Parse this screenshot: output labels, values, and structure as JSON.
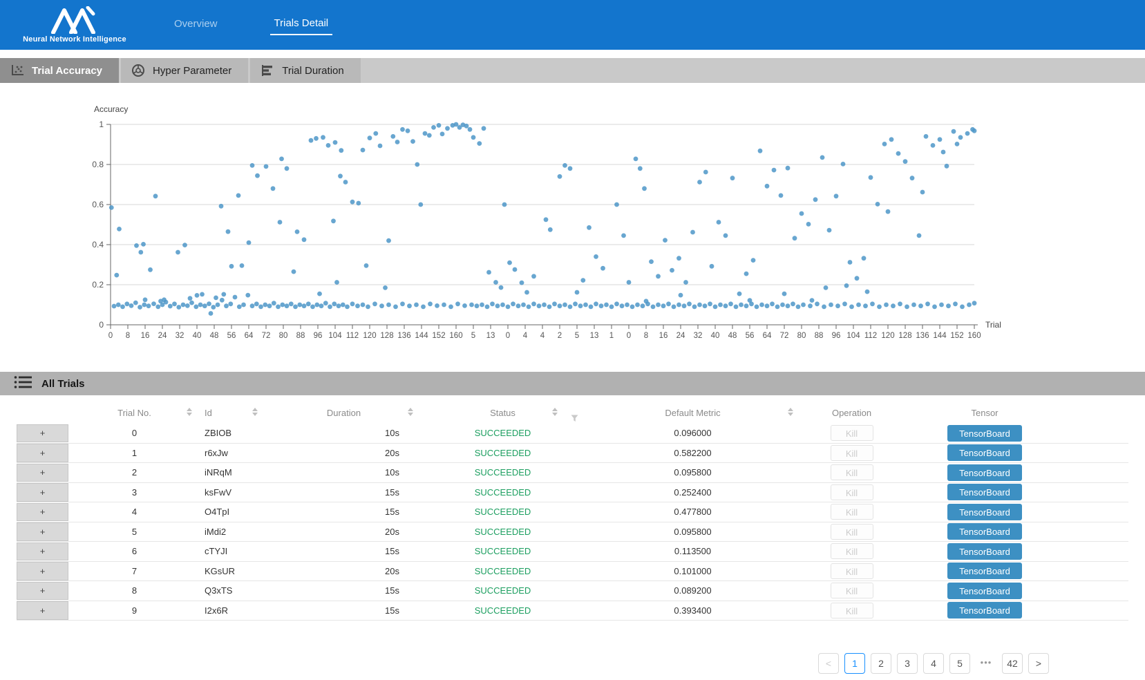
{
  "header": {
    "logo_text": "Neural Network Intelligence",
    "nav": [
      {
        "label": "Overview",
        "active": false
      },
      {
        "label": "Trials Detail",
        "active": true
      }
    ]
  },
  "subtabs": [
    {
      "label": "Trial Accuracy",
      "icon": "scatter-icon",
      "active": true
    },
    {
      "label": "Hyper Parameter",
      "icon": "wheel-icon",
      "active": false
    },
    {
      "label": "Trial Duration",
      "icon": "bars-icon",
      "active": false
    }
  ],
  "all_trials": {
    "title": "All Trials"
  },
  "colors": {
    "header_blue": "#1375cd",
    "point": "#4e96c8",
    "succeeded_green": "#1b9e5f",
    "tensorboard_blue": "#3d90c3",
    "pagination_active": "#1890ff"
  },
  "chart_data": {
    "type": "scatter",
    "title": "",
    "ylabel": "Accuracy",
    "xlabel": "Trial",
    "ylim": [
      0,
      1
    ],
    "grid": true,
    "y_ticks": [
      "0",
      "0.2",
      "0.4",
      "0.6",
      "0.8",
      "1"
    ],
    "x_tick_labels": [
      "0",
      "8",
      "16",
      "24",
      "32",
      "40",
      "48",
      "56",
      "64",
      "72",
      "80",
      "88",
      "96",
      "104",
      "112",
      "120",
      "128",
      "136",
      "144",
      "152",
      "160",
      "5",
      "13",
      "0",
      "4",
      "4",
      "2",
      "5",
      "13",
      "1",
      "0",
      "8",
      "16",
      "24",
      "32",
      "40",
      "48",
      "56",
      "64",
      "72",
      "80",
      "88",
      "96",
      "104",
      "112",
      "120",
      "128",
      "136",
      "144",
      "152",
      "160"
    ],
    "points": [
      [
        0.2,
        0.093
      ],
      [
        0.45,
        0.1
      ],
      [
        0.7,
        0.09
      ],
      [
        0.95,
        0.104
      ],
      [
        1.2,
        0.095
      ],
      [
        1.45,
        0.11
      ],
      [
        1.7,
        0.088
      ],
      [
        1.95,
        0.1
      ],
      [
        2.2,
        0.094
      ],
      [
        2.5,
        0.105
      ],
      [
        2.75,
        0.09
      ],
      [
        3.0,
        0.1
      ],
      [
        3.2,
        0.113
      ],
      [
        3.45,
        0.093
      ],
      [
        3.7,
        0.104
      ],
      [
        3.95,
        0.088
      ],
      [
        4.2,
        0.1
      ],
      [
        4.45,
        0.095
      ],
      [
        4.7,
        0.11
      ],
      [
        4.95,
        0.09
      ],
      [
        5.2,
        0.1
      ],
      [
        5.45,
        0.094
      ],
      [
        5.7,
        0.105
      ],
      [
        5.95,
        0.088
      ],
      [
        6.2,
        0.1
      ],
      [
        6.45,
        0.123
      ],
      [
        6.7,
        0.094
      ],
      [
        6.95,
        0.104
      ],
      [
        7.2,
        0.138
      ],
      [
        7.45,
        0.09
      ],
      [
        7.7,
        0.1
      ],
      [
        7.95,
        0.148
      ],
      [
        8.2,
        0.094
      ],
      [
        8.45,
        0.104
      ],
      [
        8.7,
        0.09
      ],
      [
        8.95,
        0.1
      ],
      [
        9.2,
        0.094
      ],
      [
        9.45,
        0.108
      ],
      [
        9.7,
        0.09
      ],
      [
        9.95,
        0.1
      ],
      [
        10.2,
        0.094
      ],
      [
        10.45,
        0.104
      ],
      [
        10.7,
        0.09
      ],
      [
        10.95,
        0.1
      ],
      [
        11.2,
        0.094
      ],
      [
        11.45,
        0.104
      ],
      [
        11.7,
        0.09
      ],
      [
        11.95,
        0.1
      ],
      [
        12.2,
        0.094
      ],
      [
        12.45,
        0.108
      ],
      [
        12.7,
        0.09
      ],
      [
        12.95,
        0.104
      ],
      [
        13.2,
        0.094
      ],
      [
        13.45,
        0.1
      ],
      [
        13.7,
        0.09
      ],
      [
        14.0,
        0.104
      ],
      [
        14.3,
        0.094
      ],
      [
        14.6,
        0.1
      ],
      [
        14.9,
        0.09
      ],
      [
        15.3,
        0.104
      ],
      [
        15.7,
        0.094
      ],
      [
        16.1,
        0.1
      ],
      [
        16.5,
        0.09
      ],
      [
        16.9,
        0.104
      ],
      [
        17.3,
        0.094
      ],
      [
        17.7,
        0.1
      ],
      [
        18.1,
        0.09
      ],
      [
        18.5,
        0.104
      ],
      [
        18.9,
        0.095
      ],
      [
        19.3,
        0.1
      ],
      [
        19.7,
        0.09
      ],
      [
        20.1,
        0.104
      ],
      [
        20.5,
        0.095
      ],
      [
        20.9,
        0.1
      ],
      [
        21.2,
        0.094
      ],
      [
        21.5,
        0.1
      ],
      [
        21.8,
        0.09
      ],
      [
        22.1,
        0.104
      ],
      [
        22.4,
        0.094
      ],
      [
        22.7,
        0.1
      ],
      [
        23.0,
        0.09
      ],
      [
        23.3,
        0.104
      ],
      [
        23.6,
        0.094
      ],
      [
        23.9,
        0.1
      ],
      [
        24.2,
        0.09
      ],
      [
        24.5,
        0.104
      ],
      [
        24.8,
        0.094
      ],
      [
        25.1,
        0.1
      ],
      [
        25.4,
        0.09
      ],
      [
        25.7,
        0.104
      ],
      [
        26.0,
        0.094
      ],
      [
        26.3,
        0.1
      ],
      [
        26.6,
        0.09
      ],
      [
        26.9,
        0.104
      ],
      [
        27.2,
        0.094
      ],
      [
        27.5,
        0.1
      ],
      [
        27.8,
        0.09
      ],
      [
        28.1,
        0.104
      ],
      [
        28.4,
        0.094
      ],
      [
        28.7,
        0.1
      ],
      [
        29.0,
        0.09
      ],
      [
        29.3,
        0.104
      ],
      [
        29.6,
        0.094
      ],
      [
        29.9,
        0.1
      ],
      [
        30.2,
        0.09
      ],
      [
        30.5,
        0.1
      ],
      [
        30.8,
        0.094
      ],
      [
        31.1,
        0.104
      ],
      [
        31.4,
        0.09
      ],
      [
        31.7,
        0.1
      ],
      [
        32.0,
        0.094
      ],
      [
        32.3,
        0.104
      ],
      [
        32.6,
        0.09
      ],
      [
        32.9,
        0.1
      ],
      [
        33.2,
        0.094
      ],
      [
        33.5,
        0.104
      ],
      [
        33.8,
        0.09
      ],
      [
        34.1,
        0.1
      ],
      [
        34.4,
        0.094
      ],
      [
        34.7,
        0.104
      ],
      [
        35.0,
        0.09
      ],
      [
        35.3,
        0.1
      ],
      [
        35.6,
        0.094
      ],
      [
        35.9,
        0.104
      ],
      [
        36.2,
        0.09
      ],
      [
        36.5,
        0.1
      ],
      [
        36.8,
        0.094
      ],
      [
        37.1,
        0.104
      ],
      [
        37.4,
        0.09
      ],
      [
        37.7,
        0.1
      ],
      [
        38.0,
        0.094
      ],
      [
        38.3,
        0.104
      ],
      [
        38.6,
        0.09
      ],
      [
        38.9,
        0.1
      ],
      [
        39.2,
        0.094
      ],
      [
        39.5,
        0.104
      ],
      [
        39.8,
        0.09
      ],
      [
        40.1,
        0.1
      ],
      [
        40.5,
        0.094
      ],
      [
        40.9,
        0.104
      ],
      [
        41.3,
        0.09
      ],
      [
        41.7,
        0.1
      ],
      [
        42.1,
        0.094
      ],
      [
        42.5,
        0.104
      ],
      [
        42.9,
        0.09
      ],
      [
        43.3,
        0.1
      ],
      [
        43.7,
        0.094
      ],
      [
        44.1,
        0.104
      ],
      [
        44.5,
        0.09
      ],
      [
        44.9,
        0.1
      ],
      [
        45.3,
        0.094
      ],
      [
        45.7,
        0.104
      ],
      [
        46.1,
        0.09
      ],
      [
        46.5,
        0.1
      ],
      [
        46.9,
        0.094
      ],
      [
        47.3,
        0.104
      ],
      [
        47.7,
        0.09
      ],
      [
        48.1,
        0.1
      ],
      [
        48.5,
        0.094
      ],
      [
        48.9,
        0.104
      ],
      [
        49.3,
        0.09
      ],
      [
        49.7,
        0.1
      ],
      [
        50.0,
        0.108
      ],
      [
        0.05,
        0.585
      ],
      [
        0.5,
        0.478
      ],
      [
        0.35,
        0.248
      ],
      [
        1.5,
        0.395
      ],
      [
        1.9,
        0.402
      ],
      [
        1.75,
        0.362
      ],
      [
        2.6,
        0.642
      ],
      [
        3.9,
        0.362
      ],
      [
        4.3,
        0.398
      ],
      [
        2.3,
        0.275
      ],
      [
        5.8,
        0.057
      ],
      [
        3.1,
        0.125
      ],
      [
        2.0,
        0.125
      ],
      [
        2.9,
        0.118
      ],
      [
        4.6,
        0.132
      ],
      [
        5.0,
        0.147
      ],
      [
        5.3,
        0.152
      ],
      [
        6.1,
        0.135
      ],
      [
        6.55,
        0.152
      ],
      [
        6.4,
        0.592
      ],
      [
        7.4,
        0.645
      ],
      [
        6.8,
        0.465
      ],
      [
        7.0,
        0.292
      ],
      [
        8.0,
        0.41
      ],
      [
        7.6,
        0.295
      ],
      [
        9.8,
        0.512
      ],
      [
        10.8,
        0.464
      ],
      [
        10.6,
        0.265
      ],
      [
        8.2,
        0.795
      ],
      [
        8.5,
        0.744
      ],
      [
        9.0,
        0.79
      ],
      [
        9.9,
        0.828
      ],
      [
        9.4,
        0.68
      ],
      [
        10.2,
        0.78
      ],
      [
        11.2,
        0.425
      ],
      [
        12.9,
        0.518
      ],
      [
        11.6,
        0.92
      ],
      [
        11.9,
        0.93
      ],
      [
        12.3,
        0.935
      ],
      [
        12.6,
        0.895
      ],
      [
        13.0,
        0.91
      ],
      [
        13.35,
        0.87
      ],
      [
        13.3,
        0.742
      ],
      [
        13.6,
        0.712
      ],
      [
        12.1,
        0.155
      ],
      [
        13.1,
        0.212
      ],
      [
        14.0,
        0.613
      ],
      [
        14.35,
        0.607
      ],
      [
        14.6,
        0.872
      ],
      [
        14.8,
        0.295
      ],
      [
        15.0,
        0.932
      ],
      [
        15.35,
        0.955
      ],
      [
        15.6,
        0.893
      ],
      [
        15.9,
        0.185
      ],
      [
        16.1,
        0.42
      ],
      [
        16.35,
        0.94
      ],
      [
        16.6,
        0.912
      ],
      [
        16.9,
        0.975
      ],
      [
        17.2,
        0.968
      ],
      [
        17.5,
        0.915
      ],
      [
        17.75,
        0.8
      ],
      [
        17.95,
        0.6
      ],
      [
        18.2,
        0.955
      ],
      [
        18.45,
        0.945
      ],
      [
        18.7,
        0.985
      ],
      [
        19.0,
        0.995
      ],
      [
        19.2,
        0.952
      ],
      [
        19.5,
        0.98
      ],
      [
        19.8,
        0.995
      ],
      [
        20.0,
        1.0
      ],
      [
        20.2,
        0.985
      ],
      [
        20.4,
        0.998
      ],
      [
        20.6,
        0.992
      ],
      [
        20.8,
        0.975
      ],
      [
        21.0,
        0.935
      ],
      [
        21.35,
        0.905
      ],
      [
        21.6,
        0.98
      ],
      [
        21.9,
        0.262
      ],
      [
        22.3,
        0.212
      ],
      [
        22.6,
        0.186
      ],
      [
        23.1,
        0.31
      ],
      [
        23.4,
        0.276
      ],
      [
        22.8,
        0.6
      ],
      [
        23.8,
        0.21
      ],
      [
        24.1,
        0.162
      ],
      [
        24.5,
        0.242
      ],
      [
        25.2,
        0.525
      ],
      [
        25.45,
        0.475
      ],
      [
        26.0,
        0.74
      ],
      [
        26.3,
        0.795
      ],
      [
        26.6,
        0.78
      ],
      [
        27.0,
        0.162
      ],
      [
        27.35,
        0.222
      ],
      [
        27.7,
        0.485
      ],
      [
        28.1,
        0.34
      ],
      [
        28.5,
        0.282
      ],
      [
        29.3,
        0.6
      ],
      [
        29.7,
        0.445
      ],
      [
        30.0,
        0.212
      ],
      [
        30.4,
        0.828
      ],
      [
        30.65,
        0.78
      ],
      [
        30.9,
        0.68
      ],
      [
        31.3,
        0.315
      ],
      [
        31.7,
        0.242
      ],
      [
        32.1,
        0.422
      ],
      [
        32.5,
        0.272
      ],
      [
        32.9,
        0.332
      ],
      [
        33.3,
        0.212
      ],
      [
        33.7,
        0.462
      ],
      [
        34.1,
        0.712
      ],
      [
        34.45,
        0.762
      ],
      [
        34.8,
        0.292
      ],
      [
        35.2,
        0.512
      ],
      [
        35.6,
        0.445
      ],
      [
        36.0,
        0.732
      ],
      [
        36.4,
        0.155
      ],
      [
        36.8,
        0.255
      ],
      [
        37.2,
        0.322
      ],
      [
        37.6,
        0.868
      ],
      [
        38.0,
        0.692
      ],
      [
        38.4,
        0.772
      ],
      [
        38.8,
        0.645
      ],
      [
        39.2,
        0.782
      ],
      [
        39.6,
        0.432
      ],
      [
        40.0,
        0.555
      ],
      [
        40.4,
        0.502
      ],
      [
        40.8,
        0.625
      ],
      [
        41.2,
        0.835
      ],
      [
        41.6,
        0.472
      ],
      [
        42.0,
        0.642
      ],
      [
        42.4,
        0.802
      ],
      [
        42.8,
        0.312
      ],
      [
        43.2,
        0.232
      ],
      [
        43.6,
        0.332
      ],
      [
        44.0,
        0.735
      ],
      [
        44.4,
        0.602
      ],
      [
        44.8,
        0.902
      ],
      [
        45.2,
        0.925
      ],
      [
        45.6,
        0.855
      ],
      [
        46.0,
        0.815
      ],
      [
        46.4,
        0.732
      ],
      [
        46.8,
        0.445
      ],
      [
        47.2,
        0.94
      ],
      [
        47.6,
        0.895
      ],
      [
        48.0,
        0.925
      ],
      [
        48.4,
        0.792
      ],
      [
        48.8,
        0.965
      ],
      [
        49.2,
        0.935
      ],
      [
        49.6,
        0.955
      ],
      [
        49.9,
        0.975
      ],
      [
        50.0,
        0.968
      ],
      [
        49.0,
        0.902
      ],
      [
        48.2,
        0.862
      ],
      [
        47.0,
        0.662
      ],
      [
        45.0,
        0.565
      ],
      [
        43.8,
        0.165
      ],
      [
        42.6,
        0.195
      ],
      [
        41.4,
        0.185
      ],
      [
        40.6,
        0.122
      ],
      [
        39.0,
        0.155
      ],
      [
        37.0,
        0.122
      ],
      [
        31.0,
        0.118
      ],
      [
        33.0,
        0.148
      ]
    ]
  },
  "table": {
    "expander_label": "+",
    "kill_label": "Kill",
    "tensorboard_label": "TensorBoard",
    "columns": [
      {
        "label": "Trial No.",
        "sortable": true
      },
      {
        "label": "Id",
        "sortable": true
      },
      {
        "label": "Duration",
        "sortable": true
      },
      {
        "label": "Status",
        "sortable": true,
        "filterable": true
      },
      {
        "label": "Default Metric",
        "sortable": true
      },
      {
        "label": "Operation",
        "sortable": false
      },
      {
        "label": "Tensor",
        "sortable": false
      }
    ],
    "rows": [
      {
        "no": "0",
        "id": "ZBIOB",
        "duration": "10s",
        "status": "SUCCEEDED",
        "metric": "0.096000"
      },
      {
        "no": "1",
        "id": "r6xJw",
        "duration": "20s",
        "status": "SUCCEEDED",
        "metric": "0.582200"
      },
      {
        "no": "2",
        "id": "iNRqM",
        "duration": "10s",
        "status": "SUCCEEDED",
        "metric": "0.095800"
      },
      {
        "no": "3",
        "id": "ksFwV",
        "duration": "15s",
        "status": "SUCCEEDED",
        "metric": "0.252400"
      },
      {
        "no": "4",
        "id": "O4TpI",
        "duration": "15s",
        "status": "SUCCEEDED",
        "metric": "0.477800"
      },
      {
        "no": "5",
        "id": "iMdi2",
        "duration": "20s",
        "status": "SUCCEEDED",
        "metric": "0.095800"
      },
      {
        "no": "6",
        "id": "cTYJI",
        "duration": "15s",
        "status": "SUCCEEDED",
        "metric": "0.113500"
      },
      {
        "no": "7",
        "id": "KGsUR",
        "duration": "20s",
        "status": "SUCCEEDED",
        "metric": "0.101000"
      },
      {
        "no": "8",
        "id": "Q3xTS",
        "duration": "15s",
        "status": "SUCCEEDED",
        "metric": "0.089200"
      },
      {
        "no": "9",
        "id": "I2x6R",
        "duration": "15s",
        "status": "SUCCEEDED",
        "metric": "0.393400"
      }
    ]
  },
  "pagination": {
    "items": [
      {
        "label": "<",
        "state": "disabled"
      },
      {
        "label": "1",
        "state": "active"
      },
      {
        "label": "2",
        "state": "normal"
      },
      {
        "label": "3",
        "state": "normal"
      },
      {
        "label": "4",
        "state": "normal"
      },
      {
        "label": "5",
        "state": "normal"
      },
      {
        "label": "•••",
        "state": "ellipsis"
      },
      {
        "label": "42",
        "state": "normal"
      },
      {
        "label": ">",
        "state": "normal"
      }
    ]
  }
}
